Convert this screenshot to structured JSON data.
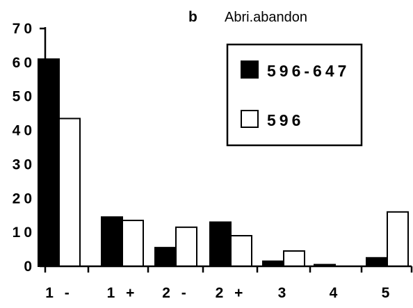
{
  "panel_letter": "b",
  "chart_data": {
    "type": "bar",
    "title": "Abri.abandon",
    "categories": [
      "1 -",
      "1 +",
      "2 -",
      "2 +",
      "3",
      "4",
      "5"
    ],
    "series": [
      {
        "name": "596-647",
        "color": "#000000",
        "values": [
          61,
          14.5,
          5.5,
          13,
          1.5,
          0.5,
          2.5
        ]
      },
      {
        "name": "596",
        "color": "#ffffff",
        "values": [
          43.5,
          13.5,
          11.5,
          9,
          4.5,
          0,
          16
        ]
      }
    ],
    "y_ticks": [
      "0",
      "10",
      "20",
      "30",
      "40",
      "50",
      "60",
      "70"
    ],
    "ylim": [
      0,
      70
    ],
    "xlabel": "",
    "ylabel": "",
    "grid": false,
    "legend_position": "top-right"
  }
}
